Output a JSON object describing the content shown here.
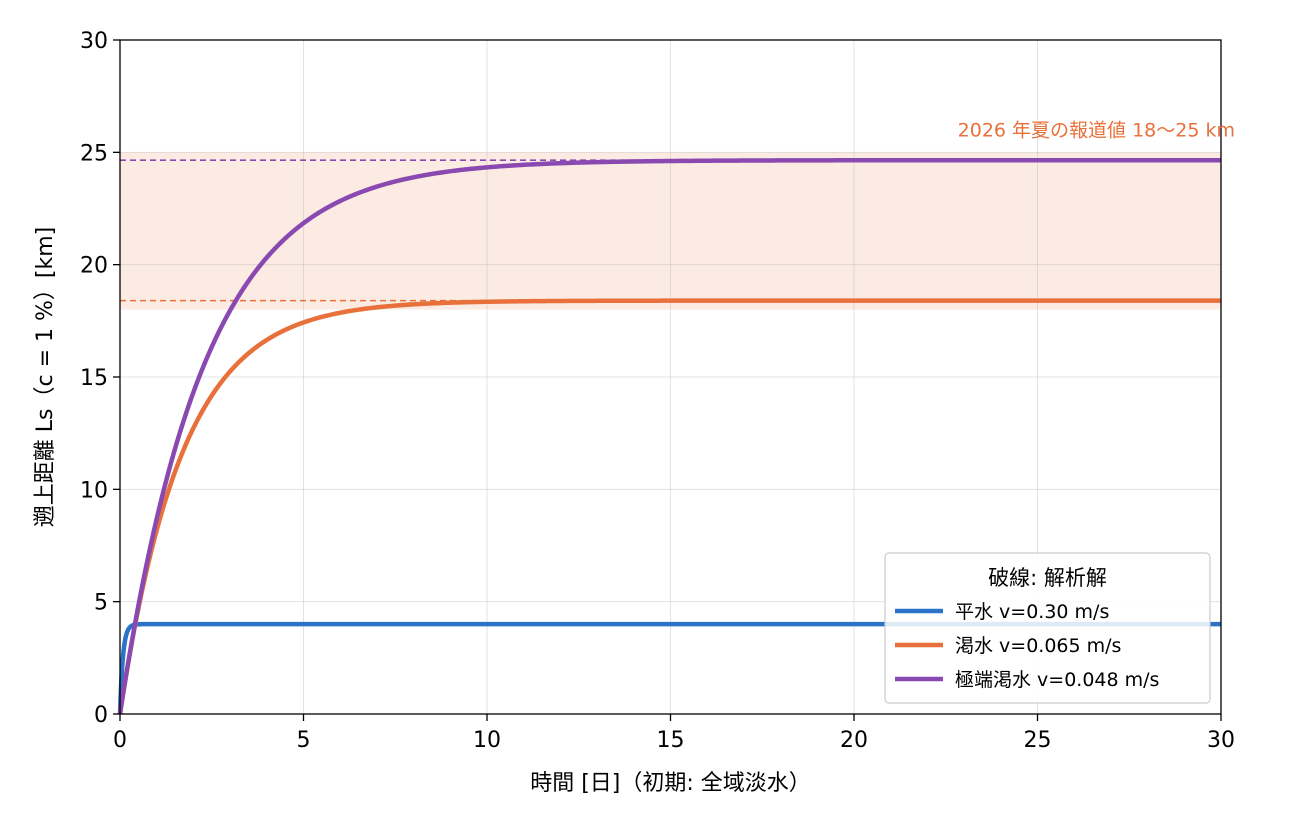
{
  "chart_data": {
    "type": "line",
    "xlabel": "時間 [日]（初期: 全域淡水）",
    "ylabel": "遡上距離 Ls（c = 1 %）[km]",
    "xlim": [
      0,
      30
    ],
    "ylim": [
      0,
      30
    ],
    "x_ticks": [
      "0",
      "5",
      "10",
      "15",
      "20",
      "25",
      "30"
    ],
    "y_ticks": [
      "0",
      "5",
      "10",
      "15",
      "20",
      "25",
      "30"
    ],
    "grid": true,
    "legend": {
      "title": "破線: 解析解",
      "placement": "lower-right"
    },
    "band": {
      "label": "2026 年夏の報道値 18〜25 km",
      "y_min": 18,
      "y_max": 25,
      "color": "#e8703a"
    },
    "series": [
      {
        "name": "平水 v=0.30 m/s",
        "color": "#2b73c8",
        "asymptote": 4.0,
        "tau_days": 0.08,
        "analytic_line": false
      },
      {
        "name": "渇水 v=0.065 m/s",
        "color": "#e8703a",
        "asymptote": 18.4,
        "tau_days": 1.7,
        "analytic_line": true
      },
      {
        "name": "極端渇水 v=0.048 m/s",
        "color": "#8a49b0",
        "asymptote": 24.65,
        "tau_days": 2.3,
        "analytic_line": true
      }
    ]
  }
}
